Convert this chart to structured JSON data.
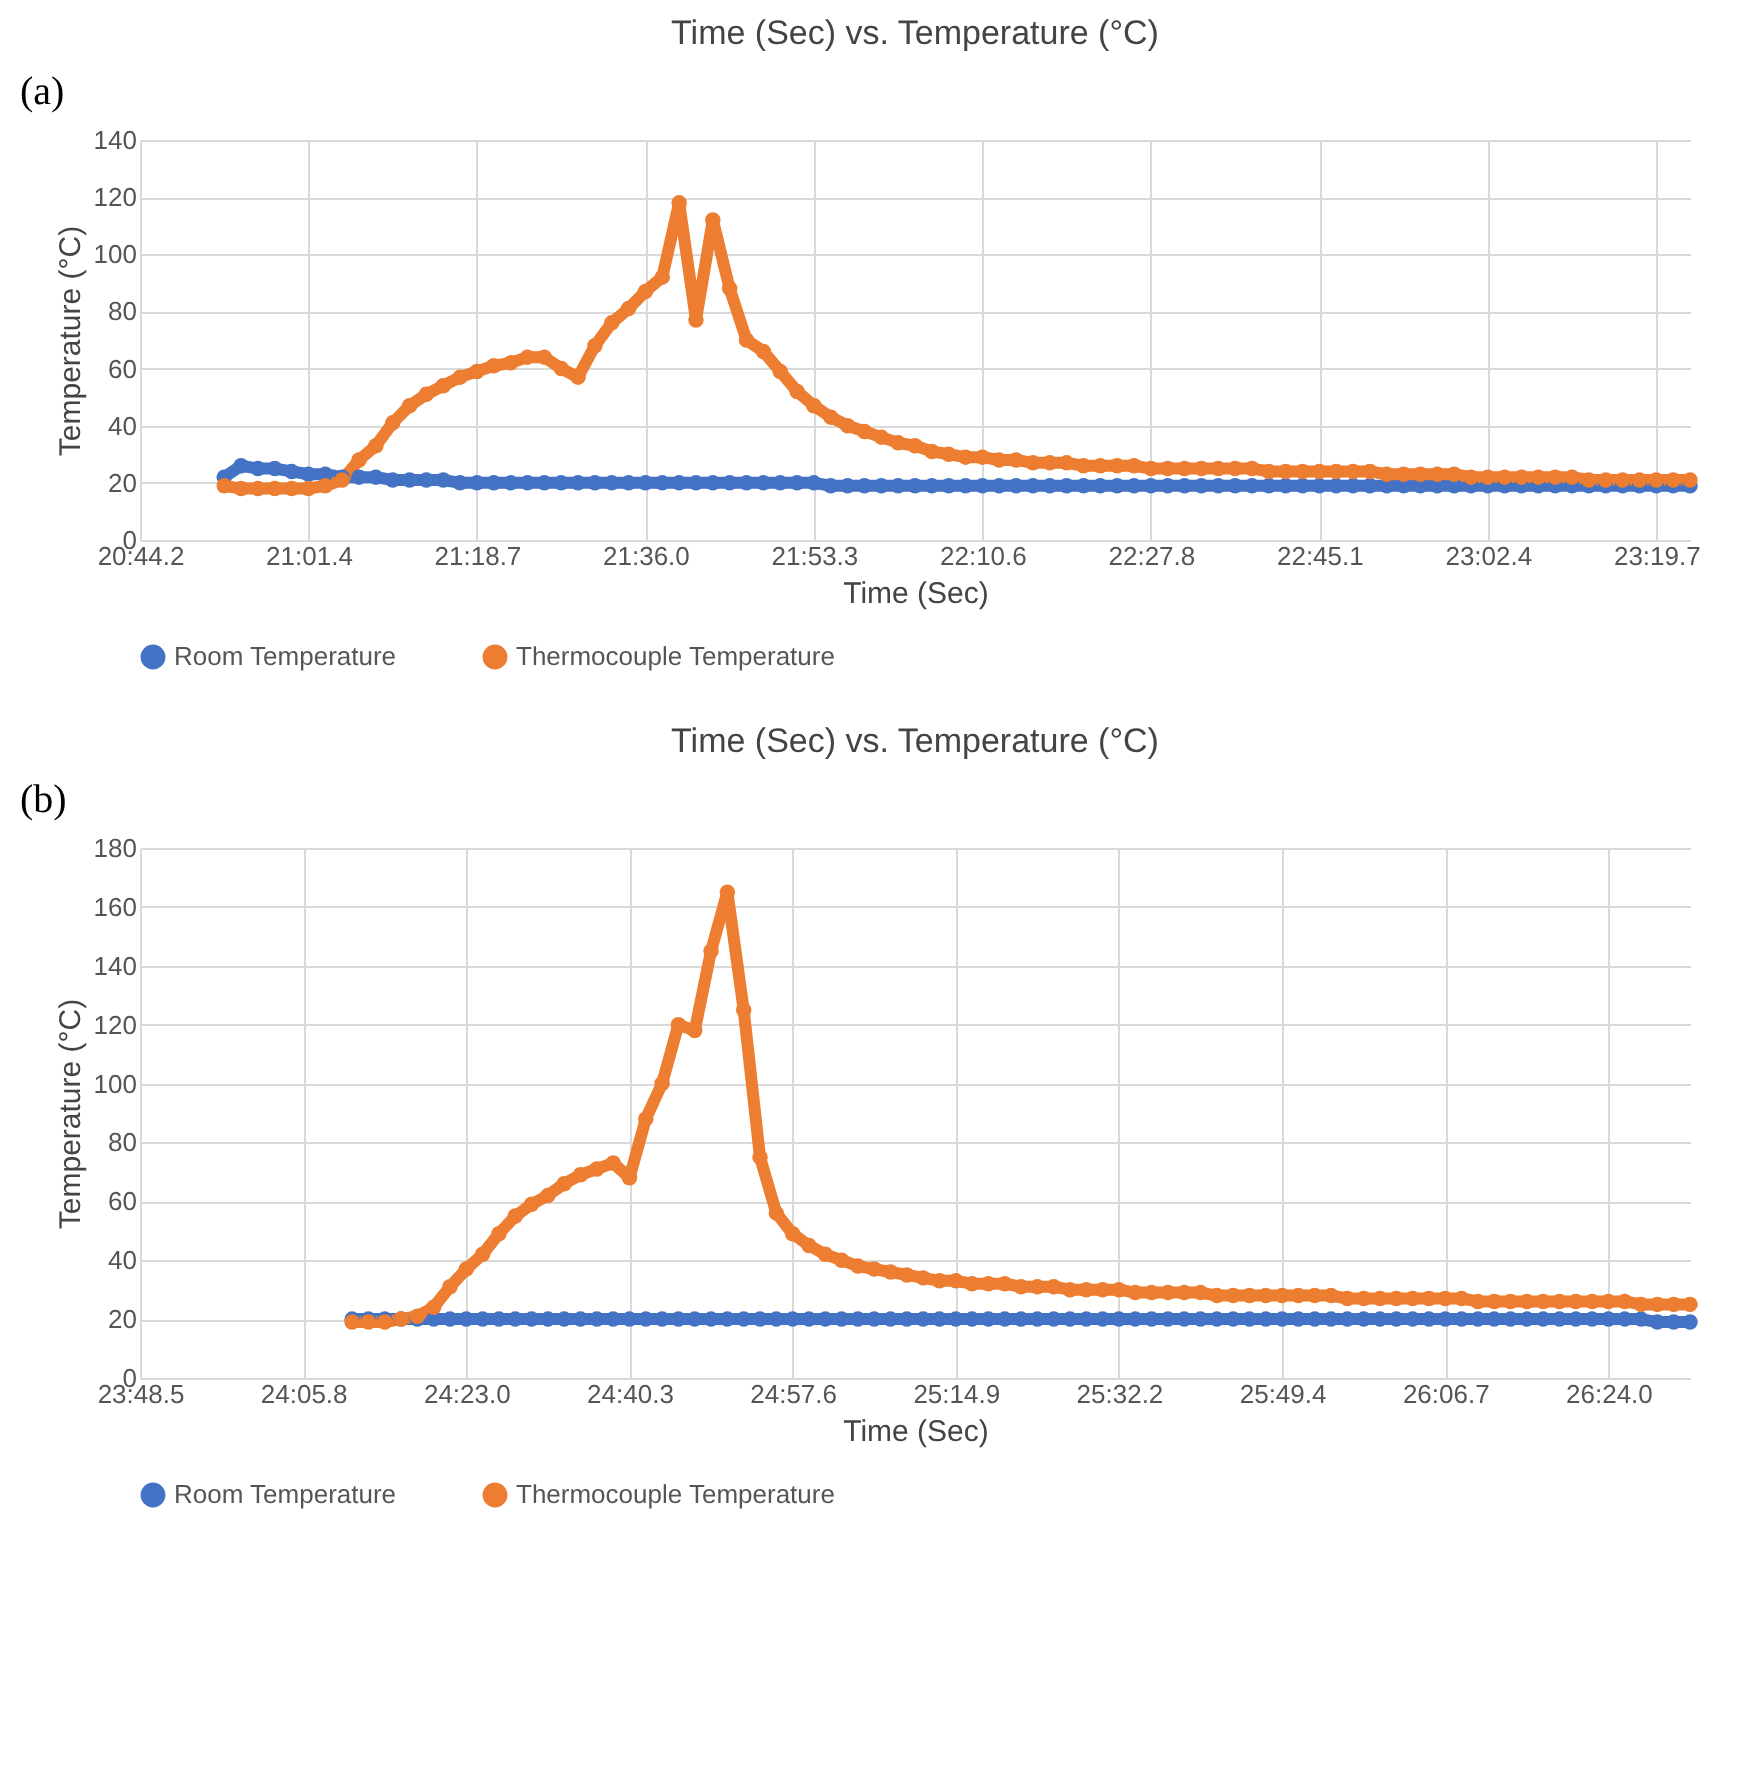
{
  "chart_data": [
    {
      "type": "line",
      "title": "Time (Sec) vs. Temperature (°C)",
      "xlabel": "Time (Sec)",
      "ylabel": "Temperature (°C)",
      "annotations": [
        "(a)"
      ],
      "grid": true,
      "legend": "bottom",
      "marker": "circle",
      "line_style": "solid",
      "categories": [
        "20:44.2",
        null,
        null,
        null,
        null,
        null,
        null,
        null,
        null,
        null,
        "21:01.4",
        null,
        null,
        null,
        null,
        null,
        null,
        null,
        null,
        null,
        "21:18.7",
        null,
        null,
        null,
        null,
        null,
        null,
        null,
        null,
        null,
        "21:36.0",
        null,
        null,
        null,
        null,
        null,
        null,
        null,
        null,
        null,
        "21:53.3",
        null,
        null,
        null,
        null,
        null,
        null,
        null,
        null,
        null,
        "22:10.6",
        null,
        null,
        null,
        null,
        null,
        null,
        null,
        null,
        null,
        "22:27.8",
        null,
        null,
        null,
        null,
        null,
        null,
        null,
        null,
        null,
        "22:45.1",
        null,
        null,
        null,
        null,
        null,
        null,
        null,
        null,
        null,
        "23:02.4",
        null,
        null,
        null,
        null,
        null,
        null,
        null,
        null,
        null,
        "23:19.7",
        null,
        null
      ],
      "ylim": [
        0,
        140
      ],
      "yticks": [
        0,
        20,
        40,
        60,
        80,
        100,
        120,
        140
      ],
      "series": [
        {
          "name": "Room Temperature",
          "color": "#4472c4",
          "values": [
            null,
            null,
            null,
            null,
            null,
            22,
            26,
            25,
            25,
            24,
            23,
            23,
            22,
            22,
            22,
            21,
            21,
            21,
            21,
            20,
            20,
            20,
            20,
            20,
            20,
            20,
            20,
            20,
            20,
            20,
            20,
            20,
            20,
            20,
            20,
            20,
            20,
            20,
            20,
            20,
            20,
            19,
            19,
            19,
            19,
            19,
            19,
            19,
            19,
            19,
            19,
            19,
            19,
            19,
            19,
            19,
            19,
            19,
            19,
            19,
            19,
            19,
            19,
            19,
            19,
            19,
            19,
            19,
            19,
            19,
            19,
            19,
            19,
            19,
            19,
            19,
            19,
            19,
            19,
            19,
            19,
            19,
            19,
            19,
            19,
            19,
            19,
            19,
            19,
            19,
            19,
            19,
            19
          ]
        },
        {
          "name": "Thermocouple Temperature",
          "color": "#ed7d31",
          "values": [
            null,
            null,
            null,
            null,
            null,
            19,
            18,
            18,
            18,
            18,
            18,
            19,
            21,
            28,
            33,
            41,
            47,
            51,
            54,
            57,
            59,
            61,
            62,
            64,
            64,
            60,
            57,
            68,
            76,
            81,
            87,
            92,
            118,
            77,
            112,
            88,
            70,
            66,
            59,
            52,
            47,
            43,
            40,
            38,
            36,
            34,
            33,
            31,
            30,
            29,
            29,
            28,
            28,
            27,
            27,
            27,
            26,
            26,
            26,
            26,
            25,
            25,
            25,
            25,
            25,
            25,
            25,
            24,
            24,
            24,
            24,
            24,
            24,
            24,
            23,
            23,
            23,
            23,
            23,
            22,
            22,
            22,
            22,
            22,
            22,
            22,
            21,
            21,
            21,
            21,
            21,
            21,
            21
          ]
        }
      ]
    },
    {
      "type": "line",
      "title": "Time (Sec) vs. Temperature (°C)",
      "xlabel": "Time (Sec)",
      "ylabel": "Temperature (°C)",
      "annotations": [
        "(b)"
      ],
      "grid": true,
      "legend": "bottom",
      "marker": "circle",
      "line_style": "solid",
      "categories": [
        "23:48.5",
        null,
        null,
        null,
        null,
        null,
        null,
        null,
        null,
        null,
        "24:05.8",
        null,
        null,
        null,
        null,
        null,
        null,
        null,
        null,
        null,
        "24:23.0",
        null,
        null,
        null,
        null,
        null,
        null,
        null,
        null,
        null,
        "24:40.3",
        null,
        null,
        null,
        null,
        null,
        null,
        null,
        null,
        null,
        "24:57.6",
        null,
        null,
        null,
        null,
        null,
        null,
        null,
        null,
        null,
        "25:14.9",
        null,
        null,
        null,
        null,
        null,
        null,
        null,
        null,
        null,
        "25:32.2",
        null,
        null,
        null,
        null,
        null,
        null,
        null,
        null,
        null,
        "25:49.4",
        null,
        null,
        null,
        null,
        null,
        null,
        null,
        null,
        null,
        "26:06.7",
        null,
        null,
        null,
        null,
        null,
        null,
        null,
        null,
        null,
        "26:24.0",
        null,
        null,
        null,
        null,
        null
      ],
      "ylim": [
        0,
        180
      ],
      "yticks": [
        0,
        20,
        40,
        60,
        80,
        100,
        120,
        140,
        160,
        180
      ],
      "series": [
        {
          "name": "Room Temperature",
          "color": "#4472c4",
          "values": [
            null,
            null,
            null,
            null,
            null,
            null,
            null,
            null,
            null,
            null,
            null,
            null,
            null,
            20,
            20,
            20,
            20,
            20,
            20,
            20,
            20,
            20,
            20,
            20,
            20,
            20,
            20,
            20,
            20,
            20,
            20,
            20,
            20,
            20,
            20,
            20,
            20,
            20,
            20,
            20,
            20,
            20,
            20,
            20,
            20,
            20,
            20,
            20,
            20,
            20,
            20,
            20,
            20,
            20,
            20,
            20,
            20,
            20,
            20,
            20,
            20,
            20,
            20,
            20,
            20,
            20,
            20,
            20,
            20,
            20,
            20,
            20,
            20,
            20,
            20,
            20,
            20,
            20,
            20,
            20,
            20,
            20,
            20,
            20,
            20,
            20,
            20,
            20,
            20,
            20,
            20,
            20,
            20,
            19,
            19,
            19
          ]
        },
        {
          "name": "Thermocouple Temperature",
          "color": "#ed7d31",
          "values": [
            null,
            null,
            null,
            null,
            null,
            null,
            null,
            null,
            null,
            null,
            null,
            null,
            null,
            19,
            19,
            19,
            20,
            21,
            24,
            31,
            37,
            42,
            49,
            55,
            59,
            62,
            66,
            69,
            71,
            73,
            68,
            88,
            100,
            120,
            118,
            145,
            165,
            125,
            75,
            56,
            49,
            45,
            42,
            40,
            38,
            37,
            36,
            35,
            34,
            33,
            33,
            32,
            32,
            32,
            31,
            31,
            31,
            30,
            30,
            30,
            30,
            29,
            29,
            29,
            29,
            29,
            28,
            28,
            28,
            28,
            28,
            28,
            28,
            28,
            27,
            27,
            27,
            27,
            27,
            27,
            27,
            27,
            26,
            26,
            26,
            26,
            26,
            26,
            26,
            26,
            26,
            26,
            25,
            25,
            25,
            25
          ]
        }
      ]
    }
  ]
}
